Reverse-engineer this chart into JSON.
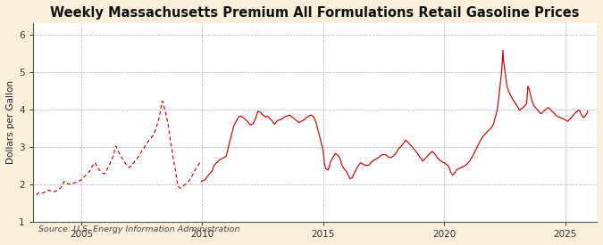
{
  "title": "Weekly Massachusetts Premium All Formulations Retail Gasoline Prices",
  "ylabel": "Dollars per Gallon",
  "source": "Source: U.S. Energy Information Administration",
  "xlim": [
    2003.0,
    2026.3
  ],
  "ylim": [
    1,
    6.3
  ],
  "yticks": [
    1,
    2,
    3,
    4,
    5,
    6
  ],
  "xticks": [
    2005,
    2010,
    2015,
    2020,
    2025
  ],
  "line_color": "#cc0000",
  "background_color": "#faefd8",
  "plot_bg_color": "#ffffff",
  "title_fontsize": 10.5,
  "ylabel_fontsize": 7.5,
  "source_fontsize": 6.8,
  "tick_fontsize": 7.5,
  "solid_data": [
    [
      2009.96,
      2.08
    ],
    [
      2010.1,
      2.12
    ],
    [
      2010.2,
      2.2
    ],
    [
      2010.3,
      2.28
    ],
    [
      2010.4,
      2.35
    ],
    [
      2010.5,
      2.52
    ],
    [
      2010.6,
      2.58
    ],
    [
      2010.7,
      2.65
    ],
    [
      2010.8,
      2.68
    ],
    [
      2010.9,
      2.72
    ],
    [
      2010.99,
      2.75
    ],
    [
      2011.1,
      3.05
    ],
    [
      2011.2,
      3.3
    ],
    [
      2011.3,
      3.55
    ],
    [
      2011.4,
      3.68
    ],
    [
      2011.5,
      3.8
    ],
    [
      2011.6,
      3.82
    ],
    [
      2011.7,
      3.78
    ],
    [
      2011.8,
      3.72
    ],
    [
      2011.9,
      3.65
    ],
    [
      2011.99,
      3.58
    ],
    [
      2012.1,
      3.62
    ],
    [
      2012.2,
      3.75
    ],
    [
      2012.3,
      3.95
    ],
    [
      2012.4,
      3.92
    ],
    [
      2012.5,
      3.85
    ],
    [
      2012.6,
      3.8
    ],
    [
      2012.7,
      3.82
    ],
    [
      2012.8,
      3.75
    ],
    [
      2012.9,
      3.68
    ],
    [
      2012.99,
      3.6
    ],
    [
      2013.1,
      3.7
    ],
    [
      2013.2,
      3.72
    ],
    [
      2013.3,
      3.75
    ],
    [
      2013.4,
      3.8
    ],
    [
      2013.5,
      3.82
    ],
    [
      2013.6,
      3.85
    ],
    [
      2013.7,
      3.8
    ],
    [
      2013.8,
      3.75
    ],
    [
      2013.9,
      3.7
    ],
    [
      2013.99,
      3.65
    ],
    [
      2014.1,
      3.68
    ],
    [
      2014.2,
      3.72
    ],
    [
      2014.3,
      3.78
    ],
    [
      2014.4,
      3.82
    ],
    [
      2014.5,
      3.85
    ],
    [
      2014.6,
      3.8
    ],
    [
      2014.7,
      3.65
    ],
    [
      2014.8,
      3.4
    ],
    [
      2014.9,
      3.15
    ],
    [
      2014.99,
      2.9
    ],
    [
      2015.05,
      2.55
    ],
    [
      2015.1,
      2.42
    ],
    [
      2015.2,
      2.38
    ],
    [
      2015.25,
      2.48
    ],
    [
      2015.3,
      2.6
    ],
    [
      2015.4,
      2.72
    ],
    [
      2015.5,
      2.82
    ],
    [
      2015.6,
      2.78
    ],
    [
      2015.7,
      2.68
    ],
    [
      2015.75,
      2.55
    ],
    [
      2015.8,
      2.48
    ],
    [
      2015.85,
      2.42
    ],
    [
      2015.9,
      2.38
    ],
    [
      2015.95,
      2.35
    ],
    [
      2015.99,
      2.3
    ],
    [
      2016.05,
      2.22
    ],
    [
      2016.1,
      2.15
    ],
    [
      2016.2,
      2.18
    ],
    [
      2016.3,
      2.32
    ],
    [
      2016.4,
      2.45
    ],
    [
      2016.5,
      2.55
    ],
    [
      2016.55,
      2.58
    ],
    [
      2016.6,
      2.55
    ],
    [
      2016.7,
      2.52
    ],
    [
      2016.8,
      2.5
    ],
    [
      2016.9,
      2.52
    ],
    [
      2016.99,
      2.6
    ],
    [
      2017.05,
      2.62
    ],
    [
      2017.1,
      2.65
    ],
    [
      2017.2,
      2.68
    ],
    [
      2017.3,
      2.72
    ],
    [
      2017.4,
      2.78
    ],
    [
      2017.5,
      2.8
    ],
    [
      2017.6,
      2.78
    ],
    [
      2017.7,
      2.72
    ],
    [
      2017.8,
      2.72
    ],
    [
      2017.9,
      2.76
    ],
    [
      2017.99,
      2.82
    ],
    [
      2018.05,
      2.88
    ],
    [
      2018.1,
      2.95
    ],
    [
      2018.2,
      3.0
    ],
    [
      2018.3,
      3.08
    ],
    [
      2018.4,
      3.18
    ],
    [
      2018.5,
      3.12
    ],
    [
      2018.6,
      3.05
    ],
    [
      2018.7,
      2.98
    ],
    [
      2018.8,
      2.9
    ],
    [
      2018.9,
      2.82
    ],
    [
      2018.99,
      2.72
    ],
    [
      2019.05,
      2.68
    ],
    [
      2019.1,
      2.62
    ],
    [
      2019.2,
      2.68
    ],
    [
      2019.3,
      2.75
    ],
    [
      2019.4,
      2.82
    ],
    [
      2019.5,
      2.88
    ],
    [
      2019.6,
      2.82
    ],
    [
      2019.7,
      2.72
    ],
    [
      2019.8,
      2.65
    ],
    [
      2019.9,
      2.6
    ],
    [
      2019.99,
      2.58
    ],
    [
      2020.05,
      2.55
    ],
    [
      2020.1,
      2.52
    ],
    [
      2020.15,
      2.5
    ],
    [
      2020.2,
      2.45
    ],
    [
      2020.25,
      2.35
    ],
    [
      2020.3,
      2.28
    ],
    [
      2020.35,
      2.25
    ],
    [
      2020.4,
      2.28
    ],
    [
      2020.45,
      2.32
    ],
    [
      2020.5,
      2.38
    ],
    [
      2020.6,
      2.42
    ],
    [
      2020.7,
      2.45
    ],
    [
      2020.8,
      2.48
    ],
    [
      2020.9,
      2.52
    ],
    [
      2020.99,
      2.58
    ],
    [
      2021.05,
      2.62
    ],
    [
      2021.1,
      2.68
    ],
    [
      2021.2,
      2.78
    ],
    [
      2021.3,
      2.92
    ],
    [
      2021.4,
      3.05
    ],
    [
      2021.5,
      3.18
    ],
    [
      2021.6,
      3.28
    ],
    [
      2021.7,
      3.35
    ],
    [
      2021.8,
      3.42
    ],
    [
      2021.9,
      3.48
    ],
    [
      2021.99,
      3.55
    ],
    [
      2022.05,
      3.65
    ],
    [
      2022.1,
      3.78
    ],
    [
      2022.15,
      3.88
    ],
    [
      2022.2,
      4.05
    ],
    [
      2022.25,
      4.3
    ],
    [
      2022.3,
      4.62
    ],
    [
      2022.35,
      4.9
    ],
    [
      2022.38,
      5.12
    ],
    [
      2022.4,
      5.3
    ],
    [
      2022.42,
      5.58
    ],
    [
      2022.45,
      5.28
    ],
    [
      2022.5,
      5.05
    ],
    [
      2022.55,
      4.8
    ],
    [
      2022.6,
      4.58
    ],
    [
      2022.7,
      4.42
    ],
    [
      2022.8,
      4.3
    ],
    [
      2022.9,
      4.2
    ],
    [
      2022.99,
      4.1
    ],
    [
      2023.05,
      4.05
    ],
    [
      2023.1,
      3.98
    ],
    [
      2023.2,
      4.02
    ],
    [
      2023.3,
      4.08
    ],
    [
      2023.4,
      4.15
    ],
    [
      2023.45,
      4.62
    ],
    [
      2023.5,
      4.55
    ],
    [
      2023.55,
      4.42
    ],
    [
      2023.6,
      4.28
    ],
    [
      2023.65,
      4.18
    ],
    [
      2023.7,
      4.1
    ],
    [
      2023.8,
      4.02
    ],
    [
      2023.9,
      3.95
    ],
    [
      2023.99,
      3.88
    ],
    [
      2024.05,
      3.92
    ],
    [
      2024.1,
      3.95
    ],
    [
      2024.2,
      4.0
    ],
    [
      2024.3,
      4.05
    ],
    [
      2024.35,
      4.02
    ],
    [
      2024.4,
      3.98
    ],
    [
      2024.5,
      3.92
    ],
    [
      2024.6,
      3.85
    ],
    [
      2024.7,
      3.8
    ],
    [
      2024.8,
      3.78
    ],
    [
      2024.9,
      3.75
    ],
    [
      2024.99,
      3.72
    ],
    [
      2025.05,
      3.7
    ],
    [
      2025.1,
      3.68
    ],
    [
      2025.2,
      3.75
    ],
    [
      2025.3,
      3.82
    ],
    [
      2025.4,
      3.9
    ],
    [
      2025.5,
      3.95
    ],
    [
      2025.55,
      3.98
    ],
    [
      2025.6,
      3.95
    ],
    [
      2025.65,
      3.88
    ],
    [
      2025.7,
      3.82
    ],
    [
      2025.75,
      3.78
    ],
    [
      2025.8,
      3.8
    ],
    [
      2025.85,
      3.85
    ],
    [
      2025.9,
      3.9
    ],
    [
      2025.93,
      3.95
    ]
  ],
  "dashed_data": [
    [
      2003.15,
      1.72
    ],
    [
      2003.25,
      1.78
    ],
    [
      2003.35,
      1.76
    ],
    [
      2003.45,
      1.78
    ],
    [
      2003.55,
      1.82
    ],
    [
      2003.65,
      1.84
    ],
    [
      2003.75,
      1.83
    ],
    [
      2003.85,
      1.8
    ],
    [
      2003.95,
      1.82
    ],
    [
      2004.05,
      1.86
    ],
    [
      2004.15,
      1.9
    ],
    [
      2004.25,
      2.02
    ],
    [
      2004.3,
      2.08
    ],
    [
      2004.35,
      2.05
    ],
    [
      2004.45,
      2.02
    ],
    [
      2004.55,
      2.0
    ],
    [
      2004.65,
      2.02
    ],
    [
      2004.75,
      2.05
    ],
    [
      2004.85,
      2.08
    ],
    [
      2004.95,
      2.1
    ],
    [
      2005.05,
      2.15
    ],
    [
      2005.1,
      2.18
    ],
    [
      2005.15,
      2.22
    ],
    [
      2005.2,
      2.25
    ],
    [
      2005.25,
      2.28
    ],
    [
      2005.3,
      2.32
    ],
    [
      2005.35,
      2.35
    ],
    [
      2005.38,
      2.4
    ],
    [
      2005.42,
      2.45
    ],
    [
      2005.5,
      2.52
    ],
    [
      2005.55,
      2.58
    ],
    [
      2005.6,
      2.55
    ],
    [
      2005.65,
      2.48
    ],
    [
      2005.7,
      2.42
    ],
    [
      2005.75,
      2.38
    ],
    [
      2005.8,
      2.35
    ],
    [
      2005.85,
      2.32
    ],
    [
      2005.9,
      2.3
    ],
    [
      2005.95,
      2.28
    ],
    [
      2005.99,
      2.3
    ],
    [
      2006.05,
      2.38
    ],
    [
      2006.15,
      2.5
    ],
    [
      2006.25,
      2.65
    ],
    [
      2006.3,
      2.72
    ],
    [
      2006.35,
      2.82
    ],
    [
      2006.38,
      2.92
    ],
    [
      2006.4,
      2.98
    ],
    [
      2006.42,
      3.02
    ],
    [
      2006.45,
      3.0
    ],
    [
      2006.5,
      2.92
    ],
    [
      2006.6,
      2.8
    ],
    [
      2006.7,
      2.68
    ],
    [
      2006.8,
      2.58
    ],
    [
      2006.9,
      2.5
    ],
    [
      2006.99,
      2.45
    ],
    [
      2007.05,
      2.48
    ],
    [
      2007.1,
      2.52
    ],
    [
      2007.2,
      2.6
    ],
    [
      2007.3,
      2.68
    ],
    [
      2007.4,
      2.78
    ],
    [
      2007.5,
      2.88
    ],
    [
      2007.6,
      2.98
    ],
    [
      2007.7,
      3.08
    ],
    [
      2007.8,
      3.18
    ],
    [
      2007.9,
      3.25
    ],
    [
      2007.99,
      3.32
    ],
    [
      2008.05,
      3.42
    ],
    [
      2008.1,
      3.52
    ],
    [
      2008.15,
      3.62
    ],
    [
      2008.2,
      3.72
    ],
    [
      2008.25,
      3.88
    ],
    [
      2008.3,
      4.05
    ],
    [
      2008.32,
      4.18
    ],
    [
      2008.35,
      4.22
    ],
    [
      2008.38,
      4.18
    ],
    [
      2008.42,
      4.08
    ],
    [
      2008.5,
      3.88
    ],
    [
      2008.6,
      3.55
    ],
    [
      2008.7,
      3.12
    ],
    [
      2008.8,
      2.7
    ],
    [
      2008.9,
      2.35
    ],
    [
      2008.95,
      2.12
    ],
    [
      2008.99,
      1.95
    ],
    [
      2009.1,
      1.9
    ],
    [
      2009.2,
      1.95
    ],
    [
      2009.3,
      2.0
    ],
    [
      2009.4,
      2.05
    ],
    [
      2009.5,
      2.15
    ],
    [
      2009.6,
      2.25
    ],
    [
      2009.7,
      2.38
    ],
    [
      2009.8,
      2.48
    ],
    [
      2009.9,
      2.58
    ],
    [
      2009.96,
      2.62
    ]
  ]
}
